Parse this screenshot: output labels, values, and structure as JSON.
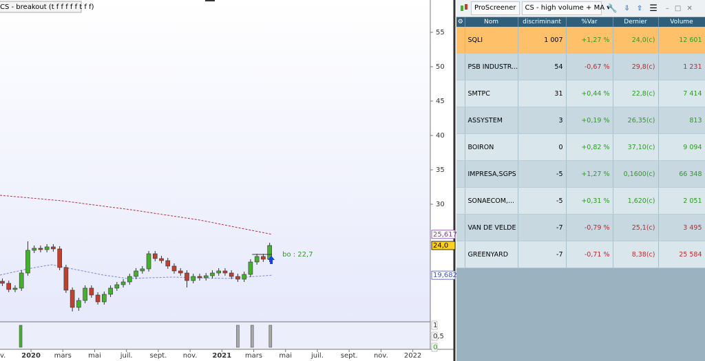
{
  "chart_data": {
    "type": "candlestick",
    "title": "CS - breakout (t f f f f f t f f)",
    "x": [
      -1.8,
      -1.4,
      -1.0,
      -0.6,
      -0.2,
      0.2,
      0.6,
      1.0,
      1.4,
      1.8,
      2.2,
      2.6,
      3.0,
      3.4,
      3.8,
      4.2,
      4.6,
      5.0,
      5.4,
      5.8,
      6.2,
      6.6,
      7.0,
      7.4,
      7.8,
      8.2,
      8.6,
      9.0,
      9.4,
      9.8,
      10.2,
      10.6,
      11.0,
      11.4,
      11.8,
      12.2,
      12.6,
      13.0,
      13.4,
      13.8,
      14.2,
      14.6,
      15.0
    ],
    "open": [
      18.8,
      18.5,
      17.6,
      17.8,
      20.0,
      23.3,
      23.6,
      23.4,
      23.8,
      23.5,
      20.8,
      17.5,
      15.0,
      16.0,
      17.8,
      16.8,
      15.8,
      16.9,
      17.8,
      18.3,
      18.7,
      19.5,
      20.3,
      20.6,
      22.8,
      22.1,
      21.8,
      21.0,
      20.3,
      20.0,
      18.9,
      19.5,
      19.3,
      19.6,
      20.0,
      20.3,
      20.0,
      19.5,
      19.1,
      19.8,
      21.6,
      22.4,
      22.0
    ],
    "high": [
      19.2,
      18.9,
      18.2,
      20.4,
      24.6,
      24.0,
      24.0,
      24.2,
      24.2,
      23.9,
      21.2,
      17.9,
      16.4,
      18.2,
      18.2,
      17.2,
      17.3,
      18.2,
      18.7,
      19.1,
      19.9,
      20.7,
      21.0,
      23.2,
      23.2,
      22.5,
      22.2,
      21.4,
      20.7,
      20.4,
      19.9,
      19.9,
      20.0,
      20.4,
      20.7,
      20.7,
      20.4,
      19.9,
      20.2,
      22.0,
      22.8,
      22.8,
      24.4
    ],
    "low": [
      18.1,
      17.2,
      17.2,
      17.4,
      19.6,
      22.9,
      23.0,
      23.0,
      23.1,
      20.4,
      17.1,
      14.4,
      14.5,
      15.6,
      16.4,
      15.4,
      15.4,
      16.5,
      17.4,
      17.9,
      18.3,
      19.1,
      19.9,
      20.2,
      21.7,
      21.4,
      20.6,
      19.9,
      19.6,
      17.9,
      18.5,
      18.9,
      18.9,
      19.2,
      19.6,
      19.6,
      19.1,
      18.7,
      18.7,
      19.4,
      21.2,
      21.6,
      21.6
    ],
    "close": [
      18.5,
      17.6,
      17.8,
      20.0,
      23.3,
      23.6,
      23.4,
      23.8,
      23.5,
      20.8,
      17.5,
      15.0,
      16.0,
      17.8,
      16.8,
      15.8,
      16.9,
      17.8,
      18.3,
      18.7,
      19.5,
      20.3,
      20.6,
      22.8,
      22.1,
      21.8,
      21.0,
      20.3,
      20.0,
      18.9,
      19.5,
      19.3,
      19.6,
      20.0,
      20.3,
      20.0,
      19.5,
      19.1,
      19.8,
      21.6,
      22.4,
      22.0,
      24.0
    ],
    "up_color": "#44b02c",
    "down_color": "#c0402e",
    "xlim": [
      -1.95,
      25.1
    ],
    "xticks": [
      {
        "value": -2,
        "label": "v."
      },
      {
        "value": 0,
        "label": "2020"
      },
      {
        "value": 2,
        "label": "mars"
      },
      {
        "value": 4,
        "label": "mai"
      },
      {
        "value": 6,
        "label": "juil."
      },
      {
        "value": 8,
        "label": "sept."
      },
      {
        "value": 10,
        "label": "nov."
      },
      {
        "value": 12,
        "label": "2021"
      },
      {
        "value": 14,
        "label": "mars"
      },
      {
        "value": 16,
        "label": "mai"
      },
      {
        "value": 18,
        "label": "juil."
      },
      {
        "value": 20,
        "label": "sept."
      },
      {
        "value": 22,
        "label": "nov."
      },
      {
        "value": 24,
        "label": "2022"
      }
    ],
    "ylim": [
      12.9,
      59.7
    ],
    "yticks": [
      30,
      35,
      40,
      45,
      50,
      55
    ],
    "moving_averages": [
      {
        "color": "#b0304a",
        "x": [
          -1.95,
          1.95,
          6.28,
          10.6,
          15.15
        ],
        "values": [
          31.3,
          30.5,
          29.2,
          27.7,
          25.617
        ]
      },
      {
        "color": "#7b86d8",
        "x": [
          -1.95,
          0,
          1.3,
          2.38,
          4.55,
          6.06,
          8.87,
          12.34,
          15.15
        ],
        "values": [
          19.7,
          20.7,
          21.2,
          20.7,
          19.7,
          19.2,
          19.4,
          19.2,
          19.682
        ]
      }
    ],
    "price_markers": [
      {
        "value": 25.617,
        "label": "25,617",
        "color": "#7a3a9a",
        "background": "#ffffff"
      },
      {
        "value": 24.0,
        "label": "24,0",
        "color": "#000000",
        "background": "#ffd21f"
      },
      {
        "value": 19.682,
        "label": "19,682",
        "color": "#4455aa",
        "background": "#ffffff"
      }
    ],
    "annotation": {
      "text": "bo : 22,7",
      "value": 22.7,
      "x": [
        13.9,
        15.15
      ]
    },
    "indicator": {
      "x": [
        -0.65,
        13.0,
        13.9,
        15.05
      ],
      "values": [
        1,
        1,
        1,
        1
      ],
      "colors": [
        "#44b02c",
        "#a8a8a8",
        "#a8a8a8",
        "#a8a8a8"
      ],
      "ylim": [
        0,
        1
      ],
      "yticks": [
        {
          "value": 1,
          "label": "1"
        },
        {
          "value": 0.5,
          "label": "0,5"
        },
        {
          "value": 0,
          "label": "0"
        }
      ]
    }
  },
  "screener": {
    "app": "ProScreener",
    "name": "CS - high volume + MA",
    "columns": [
      "Nom",
      "discriminant",
      "%Var",
      "Dernier",
      "Volume"
    ],
    "rows": [
      [
        "SQLI",
        "1 007",
        "+1,27 %",
        "24,0(c)",
        "12 601"
      ],
      [
        "PSB INDUSTR...",
        "54",
        "-0,67 %",
        "29,8(c)",
        "1 231"
      ],
      [
        "SMTPC",
        "31",
        "+0,44 %",
        "22,8(c)",
        "7 414"
      ],
      [
        "ASSYSTEM",
        "3",
        "+0,19 %",
        "26,35(c)",
        "813"
      ],
      [
        "BOIRON",
        "0",
        "+0,82 %",
        "37,10(c)",
        "9 094"
      ],
      [
        "IMPRESA,SGPS",
        "-5",
        "+1,27 %",
        "0,1600(c)",
        "66 348"
      ],
      [
        "SONAECOM,...",
        "-5",
        "+0,31 %",
        "1,620(c)",
        "2 051"
      ],
      [
        "VAN DE VELDE",
        "-7",
        "-0,79 %",
        "25,1(c)",
        "3 495"
      ],
      [
        "GREENYARD",
        "-7",
        "-0,71 %",
        "8,38(c)",
        "25 584"
      ]
    ]
  }
}
